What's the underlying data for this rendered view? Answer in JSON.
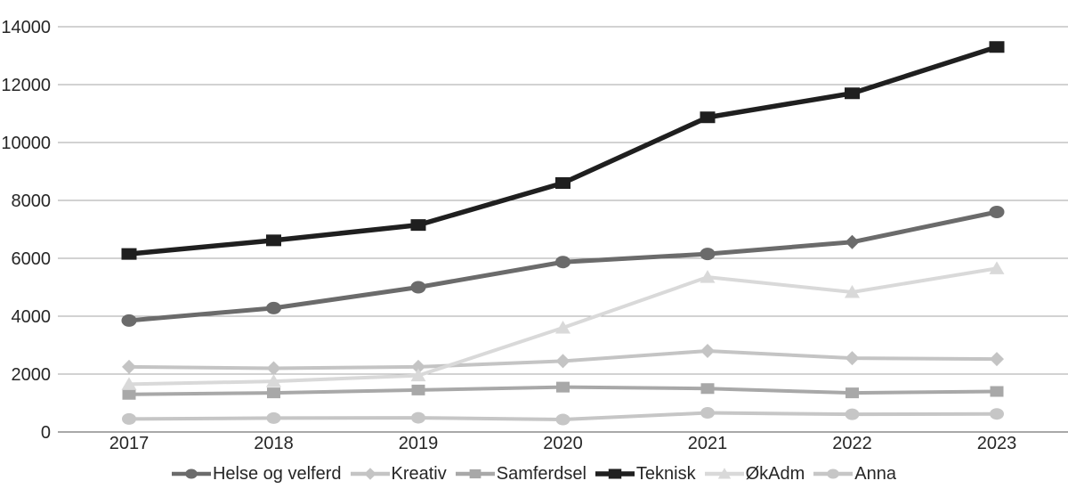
{
  "chart_data": {
    "type": "line",
    "title": "",
    "xlabel": "",
    "ylabel": "",
    "categories": [
      "2017",
      "2018",
      "2019",
      "2020",
      "2021",
      "2022",
      "2023"
    ],
    "yticks": [
      "0",
      "2000",
      "4000",
      "6000",
      "8000",
      "10000",
      "12000",
      "14000"
    ],
    "ylim": [
      0,
      14000
    ],
    "ytick_step": 2000,
    "grid": true,
    "legend_position": "bottom",
    "axis_text_color": "#262626",
    "gridline_color": "#a6a6a6",
    "axis_line_color": "#8c8c8c",
    "series": [
      {
        "name": "Helse og velferd",
        "marker": "circle",
        "marker_overrides": {
          "5": "diamond"
        },
        "color": "#6b6b6b",
        "values": [
          3850,
          4280,
          5000,
          5870,
          6150,
          6560,
          7600
        ]
      },
      {
        "name": "Kreativ",
        "marker": "diamond",
        "color": "#c4c4c4",
        "values": [
          2250,
          2200,
          2250,
          2450,
          2800,
          2550,
          2520
        ]
      },
      {
        "name": "Samferdsel",
        "marker": "square",
        "color": "#a8a8a8",
        "values": [
          1300,
          1350,
          1450,
          1550,
          1500,
          1350,
          1400
        ]
      },
      {
        "name": "Teknisk",
        "marker": "square",
        "color": "#1f1f1f",
        "values": [
          6150,
          6620,
          7150,
          8600,
          10870,
          11700,
          13300
        ]
      },
      {
        "name": "ØkAdm",
        "marker": "triangle",
        "color": "#d9d9d9",
        "values": [
          1650,
          1750,
          1950,
          3600,
          5350,
          4830,
          5650
        ]
      },
      {
        "name": "Anna",
        "marker": "circle",
        "color": "#c6c6c6",
        "values": [
          450,
          480,
          490,
          430,
          660,
          610,
          625
        ]
      }
    ]
  }
}
